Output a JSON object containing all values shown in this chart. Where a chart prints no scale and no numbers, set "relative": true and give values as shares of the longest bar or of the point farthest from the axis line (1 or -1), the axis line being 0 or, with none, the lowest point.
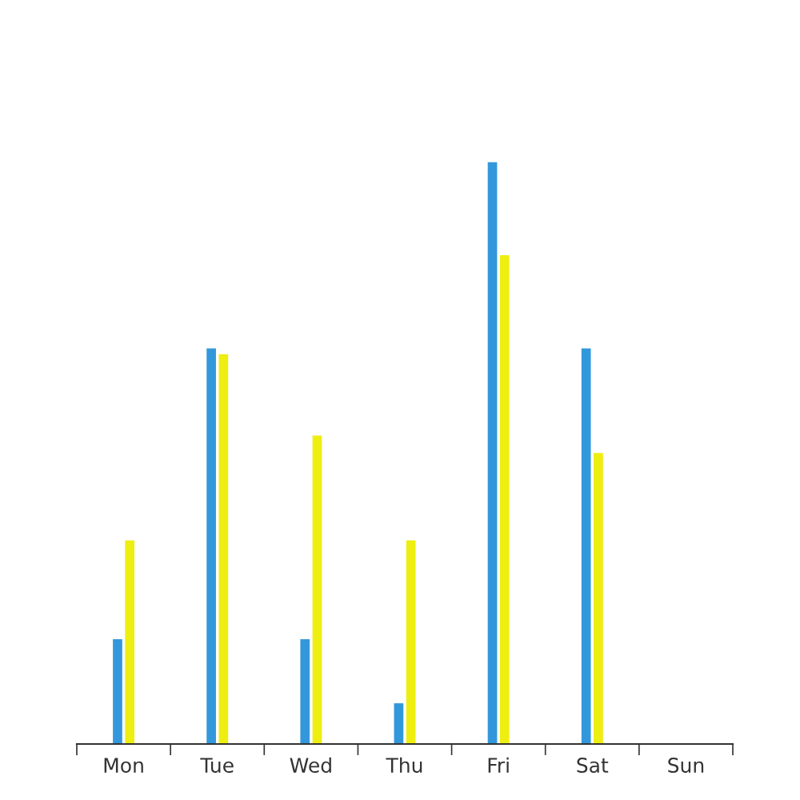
{
  "chart_data": {
    "type": "bar",
    "relative": true,
    "categories": [
      "Mon",
      "Tue",
      "Wed",
      "Thu",
      "Fri",
      "Sat",
      "Sun"
    ],
    "series": [
      {
        "color": "#3398db",
        "values": [
          0.18,
          0.68,
          0.18,
          0.07,
          1,
          0.68,
          null
        ]
      },
      {
        "color": "#eeee11",
        "values": [
          0.35,
          0.67,
          0.53,
          0.35,
          0.84,
          0.5,
          null
        ]
      }
    ]
  }
}
